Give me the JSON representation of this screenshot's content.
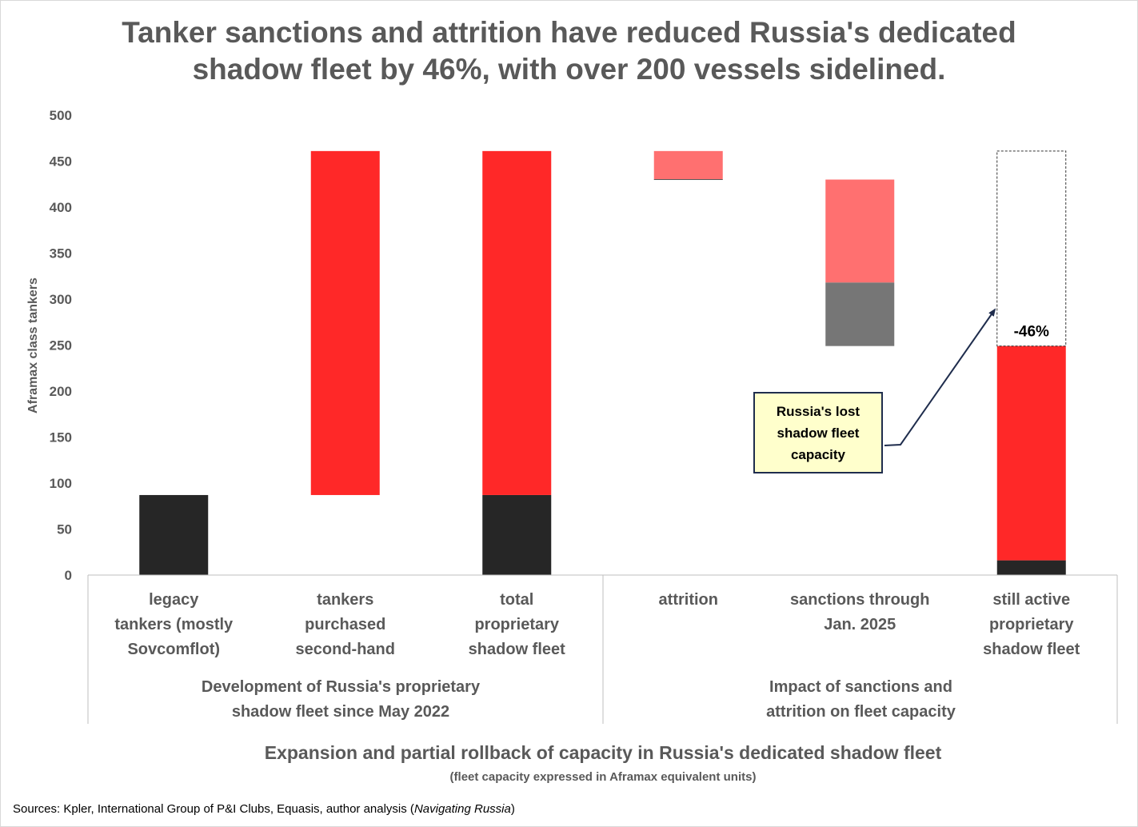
{
  "chart_data": {
    "type": "bar",
    "variant": "waterfall",
    "title": "Tanker sanctions and attrition have reduced Russia's dedicated\nshadow fleet by 46%, with over 200 vessels sidelined.",
    "ylabel": "Aframax class tankers",
    "xlabel": "Expansion and partial rollback of capacity in Russia's dedicated shadow fleet",
    "xlabel_sub": "(fleet capacity expressed in Aframax equivalent units)",
    "ylim": [
      0,
      500
    ],
    "yticks": [
      0,
      50,
      100,
      150,
      200,
      250,
      300,
      350,
      400,
      450,
      500
    ],
    "grid": false,
    "categories": [
      "legacy\ntankers (mostly\nSovcomflot)",
      "tankers\npurchased\nsecond-hand",
      "total\nproprietary\nshadow fleet",
      "attrition",
      "sanctions through\nJan. 2025",
      "still active\nproprietary\nshadow fleet"
    ],
    "groups": [
      {
        "label": "Development of Russia's proprietary\nshadow fleet since May 2022",
        "categories": [
          0,
          1,
          2
        ]
      },
      {
        "label": "Impact of sanctions and\nattrition on fleet capacity",
        "categories": [
          3,
          4,
          5
        ]
      }
    ],
    "segments": [
      {
        "category": 0,
        "from": 0,
        "to": 87,
        "color": "#262626"
      },
      {
        "category": 1,
        "from": 87,
        "to": 461,
        "color": "#ff2828"
      },
      {
        "category": 2,
        "from": 0,
        "to": 87,
        "color": "#262626"
      },
      {
        "category": 2,
        "from": 87,
        "to": 461,
        "color": "#ff2828"
      },
      {
        "category": 3,
        "from": 430,
        "to": 461,
        "color": "#ff7070"
      },
      {
        "category": 4,
        "from": 318,
        "to": 430,
        "color": "#ff7070"
      },
      {
        "category": 4,
        "from": 249,
        "to": 318,
        "color": "#767676"
      },
      {
        "category": 5,
        "from": 0,
        "to": 16,
        "color": "#262626"
      },
      {
        "category": 5,
        "from": 16,
        "to": 249,
        "color": "#ff2828"
      }
    ],
    "dashed_outline": {
      "category": 5,
      "from": 249,
      "to": 461
    },
    "annotations": {
      "percent_label": "-46%",
      "callout": "Russia's lost\nshadow fleet\ncapacity"
    }
  },
  "footer": {
    "sources_prefix": "Sources: Kpler, International Group of P&I Clubs, Equasis, author analysis (",
    "sources_italic": "Navigating Russia",
    "sources_suffix": ")"
  }
}
